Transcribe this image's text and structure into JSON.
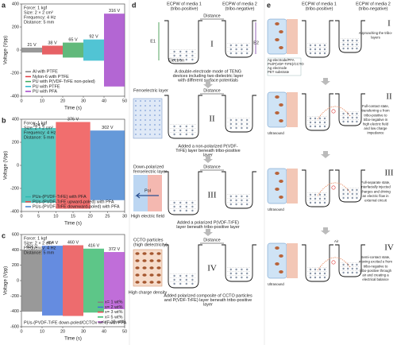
{
  "chart_data": [
    {
      "type": "signal",
      "panel": "a",
      "xlabel": "Time (s)",
      "ylabel": "Voltage (Vpp)",
      "annotations": [
        "Force: 1 kgf",
        "Size: 2 × 2 cm²",
        "Frequency: 4 Hz",
        "Distance: 5 mm"
      ],
      "xlim": [
        0,
        50
      ],
      "xticks": [
        0,
        10,
        20,
        30,
        40,
        50
      ],
      "ylim": [
        -400,
        400
      ],
      "yticks": [
        -400,
        -200,
        0,
        200,
        400
      ],
      "segment_edges": [
        0,
        10,
        20,
        30,
        40,
        50
      ],
      "legend": "lower left",
      "series": [
        {
          "name": "Al with PTFE",
          "color": "#7f7f7f",
          "values": [
            21
          ],
          "value_labels": [
            "21 V"
          ]
        },
        {
          "name": "Nylon-6 with PTFE",
          "color": "#e0393e",
          "values": [
            38
          ],
          "value_labels": [
            "38 V"
          ]
        },
        {
          "name": "PU with P(VDF-TrFE non-poled)",
          "color": "#3aa85a",
          "values": [
            65
          ],
          "value_labels": [
            "65 V"
          ]
        },
        {
          "name": "PU with PTFE",
          "color": "#26b5c9",
          "values": [
            92
          ],
          "value_labels": [
            "92 V"
          ]
        },
        {
          "name": "PU with PFA",
          "color": "#a040c8",
          "values": [
            316
          ],
          "value_labels": [
            "316 V"
          ]
        }
      ]
    },
    {
      "type": "signal",
      "panel": "b",
      "xlabel": "Time (s)",
      "ylabel": "Voltage (Vpp)",
      "annotations": [
        "Force: 1 kgf",
        "Size: 2 × 2 cm²",
        "Frequency: 4 Hz",
        "Distance: 5 mm"
      ],
      "xlim": [
        0,
        30
      ],
      "xticks": [
        0,
        5,
        10,
        15,
        20,
        25,
        30
      ],
      "ylim": [
        -400,
        400
      ],
      "yticks": [
        -400,
        -200,
        0,
        200,
        400
      ],
      "segment_edges": [
        0,
        10,
        20,
        30
      ],
      "legend": "lower left",
      "series": [
        {
          "name": "PUs-(PVDF-TrFE) with PFA",
          "color": "#2fb8b0",
          "values": [
            324
          ],
          "value_labels": [
            "324 V"
          ]
        },
        {
          "name": "PUs-(PVDF-TrFE upward-poled) with PFA",
          "color": "#ee4a4a",
          "values": [
            376
          ],
          "value_labels": [
            "376 V"
          ]
        },
        {
          "name": "PUs-(PVDF-TrFE downward-poled) with PFA",
          "color": "#3f7fd0",
          "values": [
            302
          ],
          "value_labels": [
            "302 V"
          ]
        }
      ]
    },
    {
      "type": "signal",
      "panel": "c",
      "xlabel": "Time (s)",
      "ylabel": "Voltage (Vpp)",
      "annotations": [
        "Force: 1 kgf",
        "Size: 2 × 2 cm²",
        "Frequency: 4 Hz",
        "Distance: 5 mm"
      ],
      "note": "PUs-(PVDF-TrFE down-poled/CCTOx wt%) with PFA",
      "xlim": [
        0,
        50
      ],
      "xticks": [
        0,
        10,
        20,
        30,
        40,
        50
      ],
      "ylim": [
        -600,
        600
      ],
      "yticks": [
        -600,
        -400,
        -200,
        0,
        200,
        400,
        600
      ],
      "segment_edges": [
        0,
        10,
        20,
        30,
        40,
        50
      ],
      "legend": "lower right",
      "series": [
        {
          "name": "x= 1 wt%",
          "color": "#808080",
          "values": [
            404
          ],
          "value_labels": [
            "404 V"
          ]
        },
        {
          "name": "x= 2 wt%",
          "color": "#3f6fd8",
          "values": [
            454
          ],
          "value_labels": [
            "454 V"
          ]
        },
        {
          "name": "x= 3 wt%",
          "color": "#e8474a",
          "values": [
            460
          ],
          "value_labels": [
            "460 V"
          ]
        },
        {
          "name": "x= 5 wt%",
          "color": "#34b86a",
          "values": [
            416
          ],
          "value_labels": [
            "416 V"
          ]
        },
        {
          "name": "x= 10 wt%",
          "color": "#b04ad0",
          "values": [
            372
          ],
          "value_labels": [
            "372 V"
          ]
        }
      ]
    }
  ],
  "panel_d": {
    "label": "d",
    "media": [
      {
        "name": "ECPW of media 1",
        "role": "(tribo-positive)"
      },
      {
        "name": "ECPW of media 2",
        "role": "(tribo-negative)"
      }
    ],
    "stages": [
      {
        "numeral": "I",
        "labels": [
          "Distance",
          "E1",
          "E2",
          "Electron"
        ],
        "caption": [
          "A double-electrode mode of TENG",
          "devices including two dielectric layer",
          "with different surface potentials"
        ]
      },
      {
        "numeral": "II",
        "labels": [
          "Ferroelectric layer",
          "Distance"
        ],
        "caption": [
          "Added a non-polarized P(VDF-",
          "TrFE) layer beneath tribo-positive",
          "layer"
        ]
      },
      {
        "numeral": "III",
        "labels": [
          "Down-polarized",
          "ferroelectric layer",
          "Distance",
          "Pol",
          "High electric field"
        ],
        "caption": [
          "Added a polarized P(VDF-TrFE)",
          "layer beneath tribo-positive layer"
        ]
      },
      {
        "numeral": "IV",
        "labels": [
          "CCTO particles",
          "(high dielectricity)",
          "Distance",
          "High charge density"
        ],
        "caption": [
          "Added polarized composite of CCTO particles",
          "and P(VDF-TrFE) layer beneath tribo-positive",
          "layer"
        ]
      }
    ]
  },
  "panel_e": {
    "label": "e",
    "media": [
      {
        "name": "ECPW of media 1",
        "role": "(tribo-positive)"
      },
      {
        "name": "ECPW of media 2",
        "role": "(tribo-negative)"
      }
    ],
    "stages": [
      {
        "numeral": "I",
        "labels": [
          "Ag-electrode/PFA",
          "PU/P(VDF-TrFE)/CCTO",
          "Ag electrode",
          "PET substrate"
        ],
        "caption": [
          "Approaching the tribo-",
          "layers"
        ]
      },
      {
        "numeral": "II",
        "labels": [
          "Ultrasound"
        ],
        "caption": [
          "Full-contact state,",
          "transferring e from",
          "tribo-positive to",
          "tribo-negative in",
          "high electric field",
          "and low charge",
          "impedance"
        ]
      },
      {
        "numeral": "III",
        "labels": [
          "Ultrasound"
        ],
        "caption": [
          "Full-separate state,",
          "interfacially injected",
          "charges and driving",
          "an electric flow in",
          "external circuit"
        ]
      },
      {
        "numeral": "IV",
        "labels": [
          "Ultrasound",
          "Air"
        ],
        "caption": [
          "Semi-contact state,",
          "moving excited e from",
          "tribo-negative to",
          "tribo-positive through",
          "air and creating a",
          "electrical balance"
        ]
      }
    ]
  }
}
